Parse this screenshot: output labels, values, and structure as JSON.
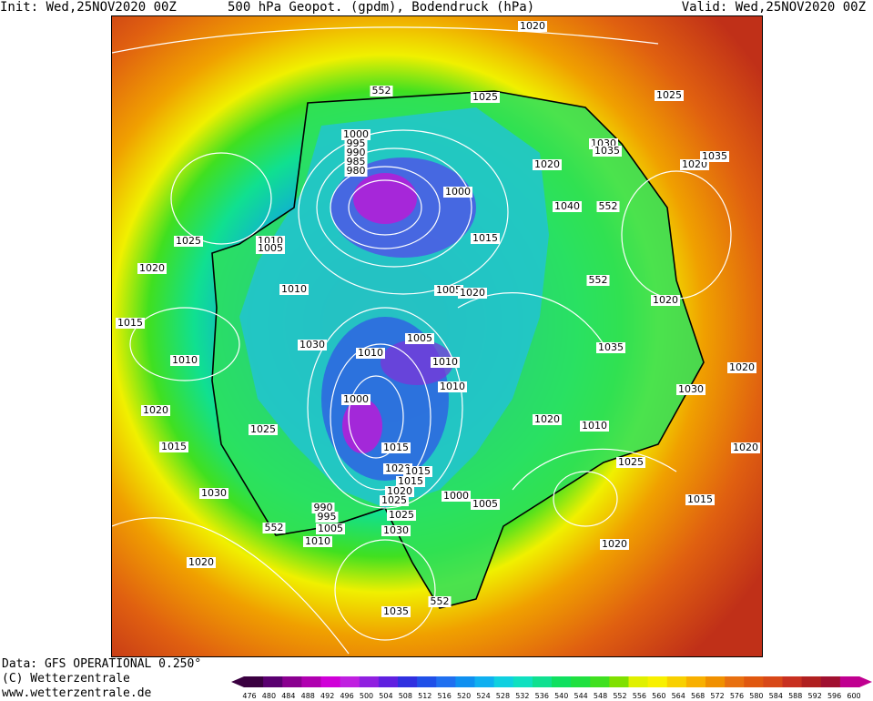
{
  "header": {
    "init": "Init: Wed,25NOV2020 00Z",
    "title": "500 hPa Geopot. (gpdm), Bodendruck (hPa)",
    "valid": "Valid: Wed,25NOV2020 00Z"
  },
  "footer": {
    "data_source": "Data: GFS OPERATIONAL 0.250°",
    "copyright": "(C) Wetterzentrale",
    "website": "www.wetterzentrale.de"
  },
  "map": {
    "geopotential_labels": [
      "552",
      "552",
      "552",
      "552",
      "552"
    ],
    "pressure_labels": [
      "1020",
      "1025",
      "1025",
      "1030",
      "1035",
      "1020",
      "1020",
      "1000",
      "995",
      "990",
      "985",
      "980",
      "1000",
      "1015",
      "1040",
      "1010",
      "1005",
      "1025",
      "1020",
      "1015",
      "1010",
      "1020",
      "1015",
      "1010",
      "1005",
      "1020",
      "1020",
      "1030",
      "1010",
      "1005",
      "1010",
      "1010",
      "1000",
      "1015",
      "1020",
      "1015",
      "1025",
      "1020",
      "1025",
      "1030",
      "1035",
      "1020",
      "1035",
      "1015",
      "1020",
      "1030",
      "1020",
      "1025",
      "1020",
      "1015",
      "1010",
      "1000",
      "1005",
      "990",
      "995",
      "1005",
      "1010",
      "1020",
      "1025",
      "1035",
      "1030"
    ]
  },
  "legend": {
    "ticks": [
      "476",
      "480",
      "484",
      "488",
      "492",
      "496",
      "500",
      "504",
      "508",
      "512",
      "516",
      "520",
      "524",
      "528",
      "532",
      "536",
      "540",
      "544",
      "548",
      "552",
      "556",
      "560",
      "564",
      "568",
      "572",
      "576",
      "580",
      "584",
      "588",
      "592",
      "596",
      "600"
    ],
    "colors": [
      "#3a0040",
      "#5a0070",
      "#8a0090",
      "#b000b0",
      "#d000d8",
      "#c020e0",
      "#9020e0",
      "#6020e0",
      "#3030e0",
      "#2050e8",
      "#2070f0",
      "#1090f0",
      "#10b0f0",
      "#10d0e0",
      "#10e0c0",
      "#10e090",
      "#10e060",
      "#20e040",
      "#40e020",
      "#80e000",
      "#e0f000",
      "#f8f000",
      "#f8d000",
      "#f8b000",
      "#f09000",
      "#e87010",
      "#e05810",
      "#d84818",
      "#c83020",
      "#b02020",
      "#a01030",
      "#c00090"
    ]
  }
}
